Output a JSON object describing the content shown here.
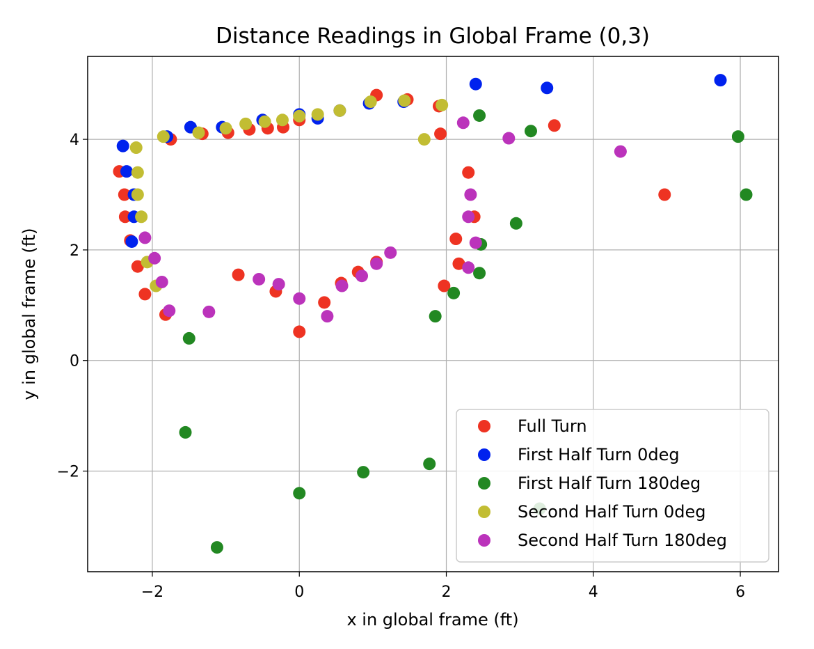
{
  "chart_data": {
    "type": "scatter",
    "title": "Distance Readings in Global Frame (0,3)",
    "xlabel": "x in global frame (ft)",
    "ylabel": "y in global frame (ft)",
    "xlim": [
      -2.88,
      6.52
    ],
    "ylim": [
      -3.82,
      5.5
    ],
    "xticks": [
      -2,
      0,
      2,
      4,
      6
    ],
    "yticks": [
      -2,
      0,
      2,
      4
    ],
    "xtick_labels": [
      "−2",
      "0",
      "2",
      "4",
      "6"
    ],
    "ytick_labels": [
      "−2",
      "0",
      "2",
      "4"
    ],
    "grid": true,
    "legend_position": "bottom-right",
    "series": [
      {
        "name": "Full Turn",
        "color": "#ee3322",
        "points": [
          [
            -2.45,
            3.42
          ],
          [
            -2.38,
            3.0
          ],
          [
            -2.37,
            2.6
          ],
          [
            -2.3,
            2.17
          ],
          [
            -2.2,
            1.7
          ],
          [
            -2.1,
            1.2
          ],
          [
            -1.82,
            0.83
          ],
          [
            -1.75,
            4.0
          ],
          [
            -1.32,
            4.1
          ],
          [
            -0.97,
            4.12
          ],
          [
            -0.68,
            4.18
          ],
          [
            -0.43,
            4.2
          ],
          [
            -0.22,
            4.22
          ],
          [
            0.0,
            4.35
          ],
          [
            0.0,
            0.52
          ],
          [
            0.34,
            1.05
          ],
          [
            -0.32,
            1.25
          ],
          [
            -0.83,
            1.55
          ],
          [
            0.57,
            1.4
          ],
          [
            0.8,
            1.6
          ],
          [
            1.05,
            1.78
          ],
          [
            1.05,
            4.8
          ],
          [
            1.47,
            4.72
          ],
          [
            1.9,
            4.6
          ],
          [
            1.92,
            4.1
          ],
          [
            1.97,
            1.35
          ],
          [
            2.13,
            2.2
          ],
          [
            2.17,
            1.75
          ],
          [
            2.3,
            3.4
          ],
          [
            2.38,
            2.6
          ],
          [
            3.47,
            4.25
          ],
          [
            4.97,
            3.0
          ]
        ]
      },
      {
        "name": "First Half Turn 0deg",
        "color": "#0022ee",
        "points": [
          [
            -2.4,
            3.88
          ],
          [
            -2.35,
            3.42
          ],
          [
            -2.25,
            3.0
          ],
          [
            -2.25,
            2.6
          ],
          [
            -2.28,
            2.15
          ],
          [
            -1.8,
            4.05
          ],
          [
            -1.48,
            4.22
          ],
          [
            -1.05,
            4.22
          ],
          [
            -0.5,
            4.35
          ],
          [
            0.0,
            4.45
          ],
          [
            0.25,
            4.38
          ],
          [
            0.55,
            4.52
          ],
          [
            0.95,
            4.65
          ],
          [
            1.42,
            4.68
          ],
          [
            2.4,
            5.0
          ],
          [
            3.37,
            4.93
          ],
          [
            5.73,
            5.07
          ]
        ]
      },
      {
        "name": "First Half Turn 180deg",
        "color": "#228822",
        "points": [
          [
            -1.55,
            -1.3
          ],
          [
            -1.12,
            -3.38
          ],
          [
            -1.5,
            0.4
          ],
          [
            0.0,
            -2.4
          ],
          [
            0.87,
            -2.02
          ],
          [
            1.77,
            -1.87
          ],
          [
            1.85,
            0.8
          ],
          [
            2.1,
            1.22
          ],
          [
            2.45,
            1.58
          ],
          [
            2.47,
            2.1
          ],
          [
            2.95,
            2.48
          ],
          [
            2.45,
            4.43
          ],
          [
            3.15,
            4.15
          ],
          [
            3.27,
            -2.68
          ],
          [
            5.97,
            4.05
          ],
          [
            6.08,
            3.0
          ]
        ]
      },
      {
        "name": "Second Half Turn 0deg",
        "color": "#c2bd33",
        "points": [
          [
            -2.22,
            3.85
          ],
          [
            -2.2,
            3.4
          ],
          [
            -2.2,
            3.0
          ],
          [
            -2.15,
            2.6
          ],
          [
            -2.07,
            1.78
          ],
          [
            -1.95,
            1.35
          ],
          [
            -1.85,
            4.05
          ],
          [
            -1.37,
            4.12
          ],
          [
            -1.0,
            4.2
          ],
          [
            -0.73,
            4.28
          ],
          [
            -0.47,
            4.32
          ],
          [
            -0.23,
            4.35
          ],
          [
            0.0,
            4.42
          ],
          [
            0.25,
            4.45
          ],
          [
            0.55,
            4.52
          ],
          [
            0.97,
            4.68
          ],
          [
            1.43,
            4.7
          ],
          [
            1.7,
            4.0
          ],
          [
            1.94,
            4.62
          ]
        ]
      },
      {
        "name": "Second Half Turn 180deg",
        "color": "#bb33bb",
        "points": [
          [
            -2.1,
            2.22
          ],
          [
            -1.97,
            1.85
          ],
          [
            -1.87,
            1.42
          ],
          [
            -1.77,
            0.9
          ],
          [
            -1.23,
            0.88
          ],
          [
            -0.55,
            1.47
          ],
          [
            -0.28,
            1.38
          ],
          [
            0.0,
            1.12
          ],
          [
            0.38,
            0.8
          ],
          [
            0.58,
            1.35
          ],
          [
            0.85,
            1.53
          ],
          [
            1.05,
            1.75
          ],
          [
            1.24,
            1.95
          ],
          [
            2.23,
            4.3
          ],
          [
            2.3,
            1.68
          ],
          [
            2.3,
            2.6
          ],
          [
            2.33,
            3.0
          ],
          [
            2.4,
            2.13
          ],
          [
            2.85,
            4.02
          ],
          [
            4.37,
            3.78
          ]
        ]
      }
    ]
  }
}
